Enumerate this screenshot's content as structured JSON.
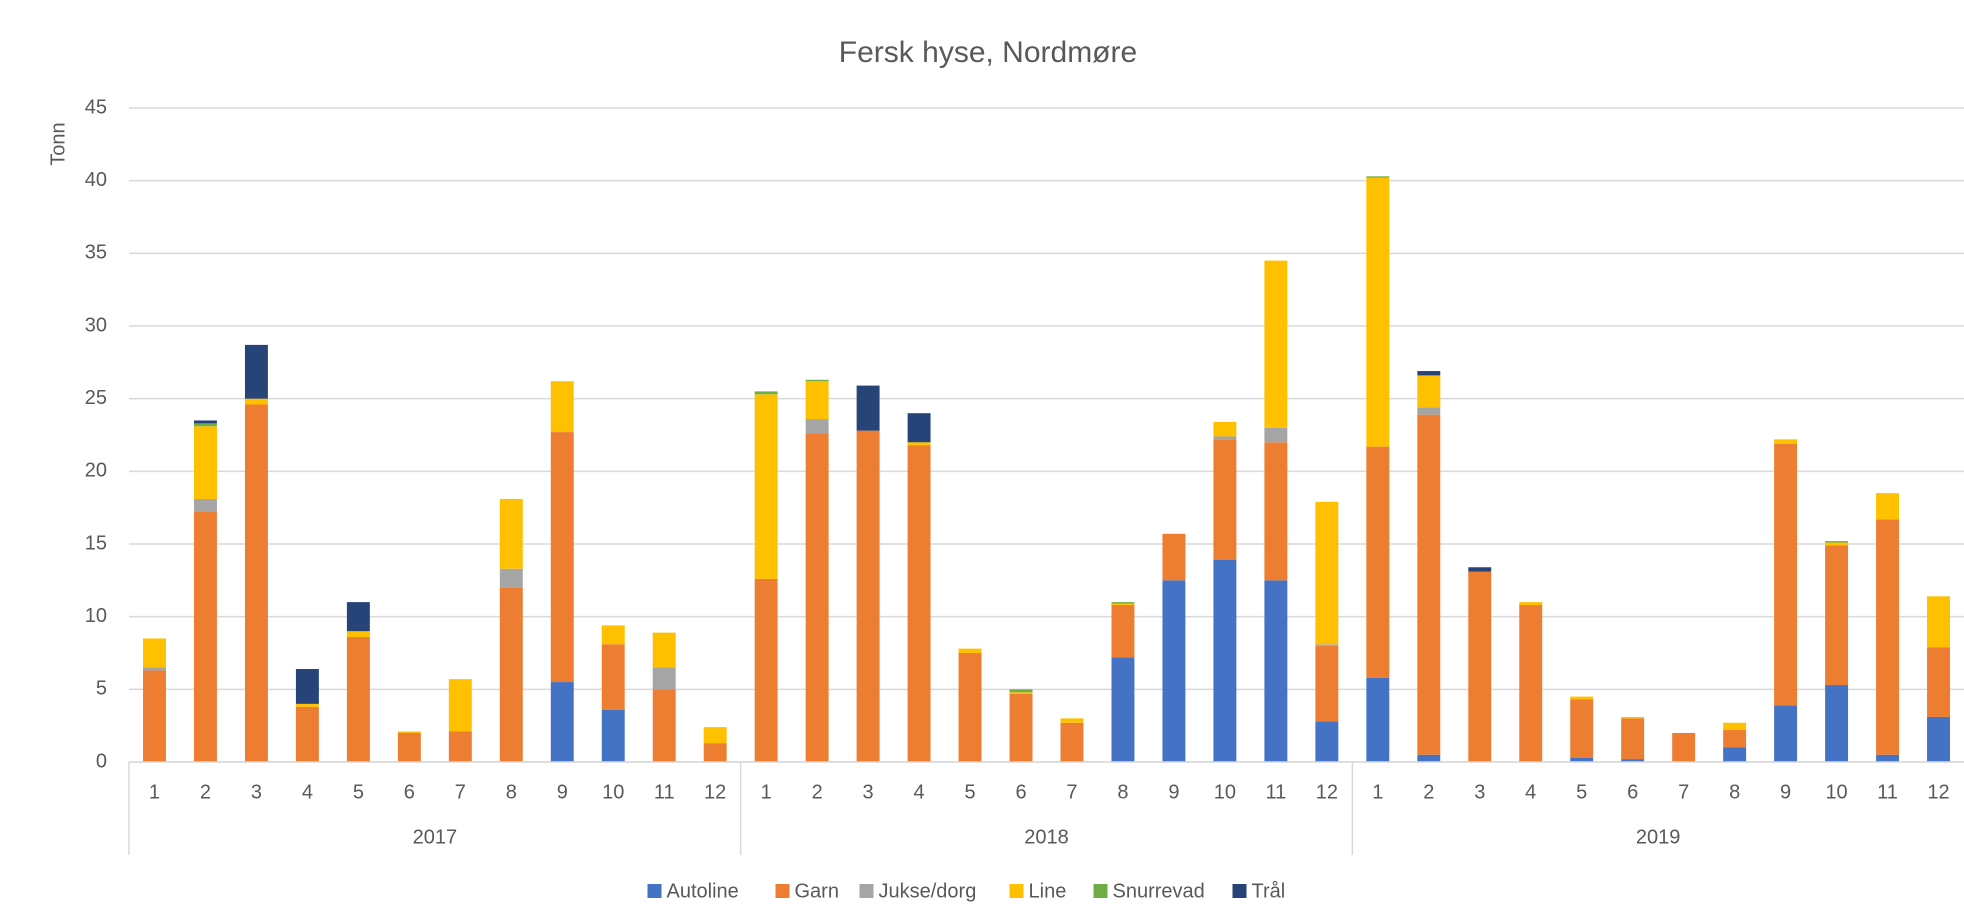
{
  "chart_data": {
    "type": "bar",
    "stacked": true,
    "title": "Fersk hyse, Nordmøre",
    "y_label": "Tonn",
    "categories": [
      "1",
      "2",
      "3",
      "4",
      "5",
      "6",
      "7",
      "8",
      "9",
      "10",
      "11",
      "12",
      "1",
      "2",
      "3",
      "4",
      "5",
      "6",
      "7",
      "8",
      "9",
      "10",
      "11",
      "12",
      "1",
      "2",
      "3",
      "4",
      "5",
      "6",
      "7",
      "8",
      "9",
      "10",
      "11",
      "12"
    ],
    "groups": [
      "2017",
      "2018",
      "2019"
    ],
    "series": [
      {
        "name": "Autoline",
        "color": "#4472c4",
        "values": [
          0,
          0,
          0,
          0,
          0,
          0,
          0,
          0,
          5.5,
          3.6,
          0,
          0,
          0,
          0,
          0,
          0,
          0,
          0,
          0,
          7.2,
          12.5,
          13.9,
          12.5,
          2.8,
          5.8,
          0.5,
          0,
          0,
          0.3,
          0.2,
          0,
          1.0,
          3.9,
          5.3,
          0.5,
          3.1
        ]
      },
      {
        "name": "Garn",
        "color": "#ed7d31",
        "values": [
          6.3,
          17.2,
          24.6,
          3.8,
          8.6,
          2.0,
          2.1,
          12.0,
          17.2,
          4.5,
          5.0,
          1.3,
          12.6,
          22.6,
          22.8,
          21.8,
          7.5,
          4.7,
          2.7,
          3.6,
          3.2,
          8.3,
          9.5,
          5.2,
          15.9,
          23.4,
          13.1,
          10.8,
          4.0,
          2.8,
          2.0,
          1.2,
          18.0,
          9.6,
          16.2,
          4.8
        ]
      },
      {
        "name": "Jukse/dorg",
        "color": "#a5a5a5",
        "values": [
          0.2,
          0.9,
          0,
          0,
          0,
          0,
          0,
          1.3,
          0,
          0,
          1.5,
          0,
          0,
          1.0,
          0,
          0,
          0,
          0,
          0,
          0,
          0,
          0.2,
          1.0,
          0.1,
          0,
          0.5,
          0,
          0,
          0,
          0,
          0,
          0,
          0,
          0,
          0,
          0
        ]
      },
      {
        "name": "Line",
        "color": "#ffc000",
        "values": [
          2.0,
          5.0,
          0.4,
          0.2,
          0.4,
          0.1,
          3.6,
          4.8,
          3.5,
          1.3,
          2.4,
          1.1,
          12.7,
          2.6,
          0,
          0.2,
          0.3,
          0.1,
          0.3,
          0.1,
          0,
          1.0,
          11.5,
          9.8,
          18.5,
          2.2,
          0,
          0.2,
          0.2,
          0.1,
          0,
          0.5,
          0.3,
          0.2,
          1.8,
          3.5
        ]
      },
      {
        "name": "Snurrevad",
        "color": "#70ad47",
        "values": [
          0,
          0.2,
          0,
          0,
          0,
          0,
          0,
          0,
          0,
          0,
          0,
          0,
          0.2,
          0.1,
          0,
          0,
          0,
          0.2,
          0,
          0.1,
          0,
          0,
          0,
          0,
          0.1,
          0,
          0,
          0,
          0,
          0,
          0,
          0,
          0,
          0.1,
          0,
          0
        ]
      },
      {
        "name": "Trål",
        "color": "#264478",
        "values": [
          0,
          0.2,
          3.7,
          2.4,
          2.0,
          0,
          0,
          0,
          0,
          0,
          0,
          0,
          0,
          0,
          3.1,
          2.0,
          0,
          0,
          0,
          0,
          0,
          0,
          0,
          0,
          0,
          0.3,
          0.3,
          0,
          0,
          0,
          0,
          0,
          0,
          0,
          0,
          0
        ]
      }
    ],
    "ylim": [
      0,
      45
    ],
    "yticks": [
      0,
      5,
      10,
      15,
      20,
      25,
      30,
      35,
      40,
      45
    ],
    "grid": true,
    "legend": "bottom"
  }
}
